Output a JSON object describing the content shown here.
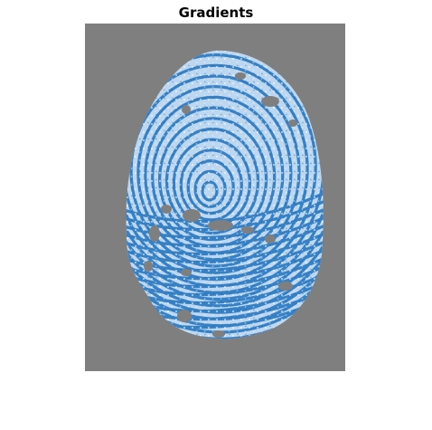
{
  "title": "Gradients",
  "colors": {
    "background": "#7f7f7f",
    "ridge_dark": "#1f72bf",
    "ridge_light": "#cfe3f5",
    "figure_bg": "#ffffff"
  }
}
